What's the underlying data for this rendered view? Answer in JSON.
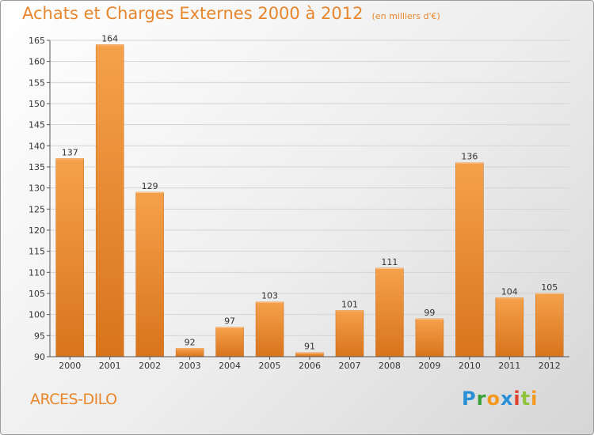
{
  "header": {
    "title": "Achats et Charges Externes 2000 à 2012",
    "subtitle": "(en milliers d'€)"
  },
  "footer": {
    "commune": "ARCES-DILO",
    "logo_letters": [
      "P",
      "r",
      "o",
      "x",
      "i",
      "t",
      "i"
    ]
  },
  "colors": {
    "bar_light": "#f5a14b",
    "bar_dark": "#d8741c",
    "accent": "#e8862c"
  },
  "chart_data": {
    "type": "bar",
    "title": "Achats et Charges Externes 2000 à 2012",
    "subtitle": "(en milliers d'€)",
    "categories": [
      "2000",
      "2001",
      "2002",
      "2003",
      "2004",
      "2005",
      "2006",
      "2007",
      "2008",
      "2009",
      "2010",
      "2011",
      "2012"
    ],
    "values": [
      137,
      164,
      129,
      92,
      97,
      103,
      91,
      101,
      111,
      99,
      136,
      104,
      105
    ],
    "ylim": [
      90,
      165
    ],
    "yticks": [
      90,
      95,
      100,
      105,
      110,
      115,
      120,
      125,
      130,
      135,
      140,
      145,
      150,
      155,
      160,
      165
    ],
    "grid": true,
    "data_labels": true
  }
}
